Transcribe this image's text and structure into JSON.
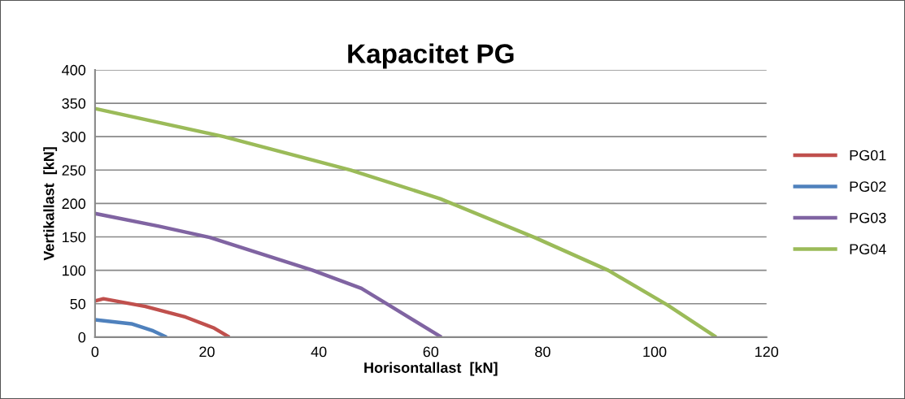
{
  "chart_data": {
    "type": "line",
    "title": "Kapacitet PG",
    "xlabel": "Horisontallast  [kN]",
    "ylabel": "Vertikallast  [kN]",
    "xlim": [
      0,
      120
    ],
    "xticks": [
      0,
      20,
      40,
      60,
      80,
      100,
      120
    ],
    "ylim": [
      0,
      400
    ],
    "yticks": [
      0,
      50,
      100,
      150,
      200,
      250,
      300,
      350,
      400
    ],
    "grid": "y",
    "legend": "right",
    "marker": "none",
    "line_style": "solid",
    "series": [
      {
        "name": "PG01",
        "color": "#c0504d",
        "x": [
          0,
          1.5,
          9,
          16.2,
          21.3,
          24
        ],
        "values": [
          54,
          57.5,
          46,
          30,
          13.5,
          0
        ]
      },
      {
        "name": "PG02",
        "color": "#4f81bd",
        "x": [
          0,
          6.5,
          10.4,
          12.8
        ],
        "values": [
          26,
          20,
          9.4,
          0
        ]
      },
      {
        "name": "PG03",
        "color": "#8064a2",
        "x": [
          0,
          11.4,
          20.6,
          38.9,
          47.6,
          52.5,
          61.9
        ],
        "values": [
          185,
          166,
          149,
          100,
          73,
          48,
          0
        ]
      },
      {
        "name": "PG04",
        "color": "#9bbb59",
        "x": [
          0,
          23,
          45.7,
          61.7,
          78.6,
          91.7,
          102.3,
          111
        ],
        "values": [
          342,
          300,
          250,
          207,
          149,
          100,
          48,
          0
        ]
      }
    ]
  }
}
